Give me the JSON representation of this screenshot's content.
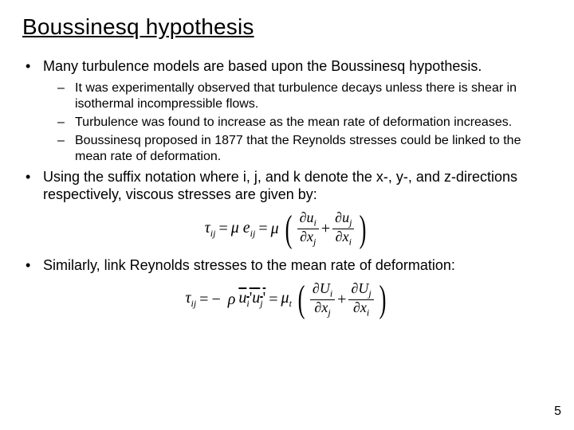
{
  "title": "Boussinesq hypothesis",
  "b1": "Many turbulence models are based upon the Boussinesq hypothesis.",
  "s1": "It was experimentally observed that turbulence decays unless there is shear in isothermal incompressible flows.",
  "s2": "Turbulence was found to increase as the mean rate of deformation increases.",
  "s3": "Boussinesq proposed in 1877 that the Reynolds stresses could be linked to the mean rate of deformation.",
  "b2": "Using the suffix notation where i, j, and k denote the x-, y-, and z-directions respectively, viscous stresses are given by:",
  "b3": "Similarly, link Reynolds stresses to the mean rate of deformation:",
  "pagenum": "5",
  "markers": {
    "dot": "•",
    "dash": "–"
  },
  "eq1": {
    "lhs_sym": "τ",
    "lhs_sub": "ij",
    "mu": "μ",
    "e": "e",
    "e_sub": "ij",
    "d": "∂",
    "u": "u",
    "x": "x",
    "i": "i",
    "j": "j"
  },
  "eq2": {
    "lhs_sym": "τ",
    "lhs_sub": "ij",
    "rho": "ρ",
    "uprime": "u",
    "i": "i",
    "j": "j",
    "mu": "μ",
    "t": "t",
    "d": "∂",
    "U": "U",
    "x": "x"
  }
}
